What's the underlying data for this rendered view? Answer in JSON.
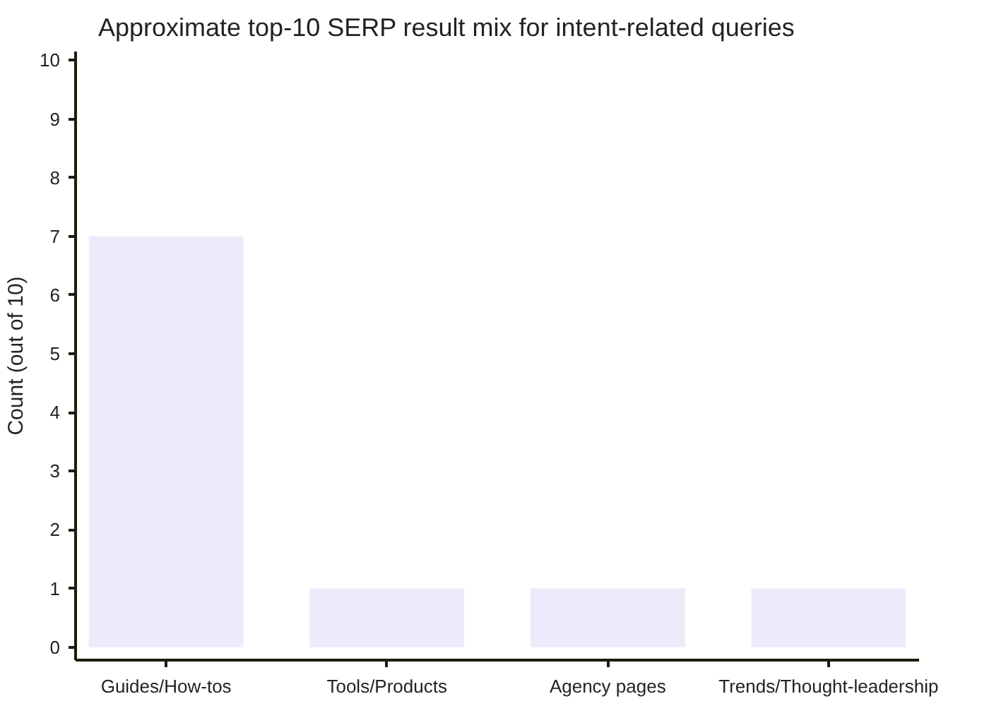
{
  "chart_data": {
    "type": "bar",
    "title": "Approximate top-10 SERP result mix for intent-related queries",
    "ylabel": "Count (out of 10)",
    "categories": [
      "Guides/How-tos",
      "Tools/Products",
      "Agency pages",
      "Trends/Thought-leadership"
    ],
    "values": [
      7,
      1,
      1,
      1
    ],
    "color": "#ebebfc",
    "ylim": [
      -0.22,
      10.15
    ],
    "yticks": [
      0,
      1,
      2,
      3,
      4,
      5,
      6,
      7,
      8,
      9,
      10
    ],
    "grid": false
  }
}
